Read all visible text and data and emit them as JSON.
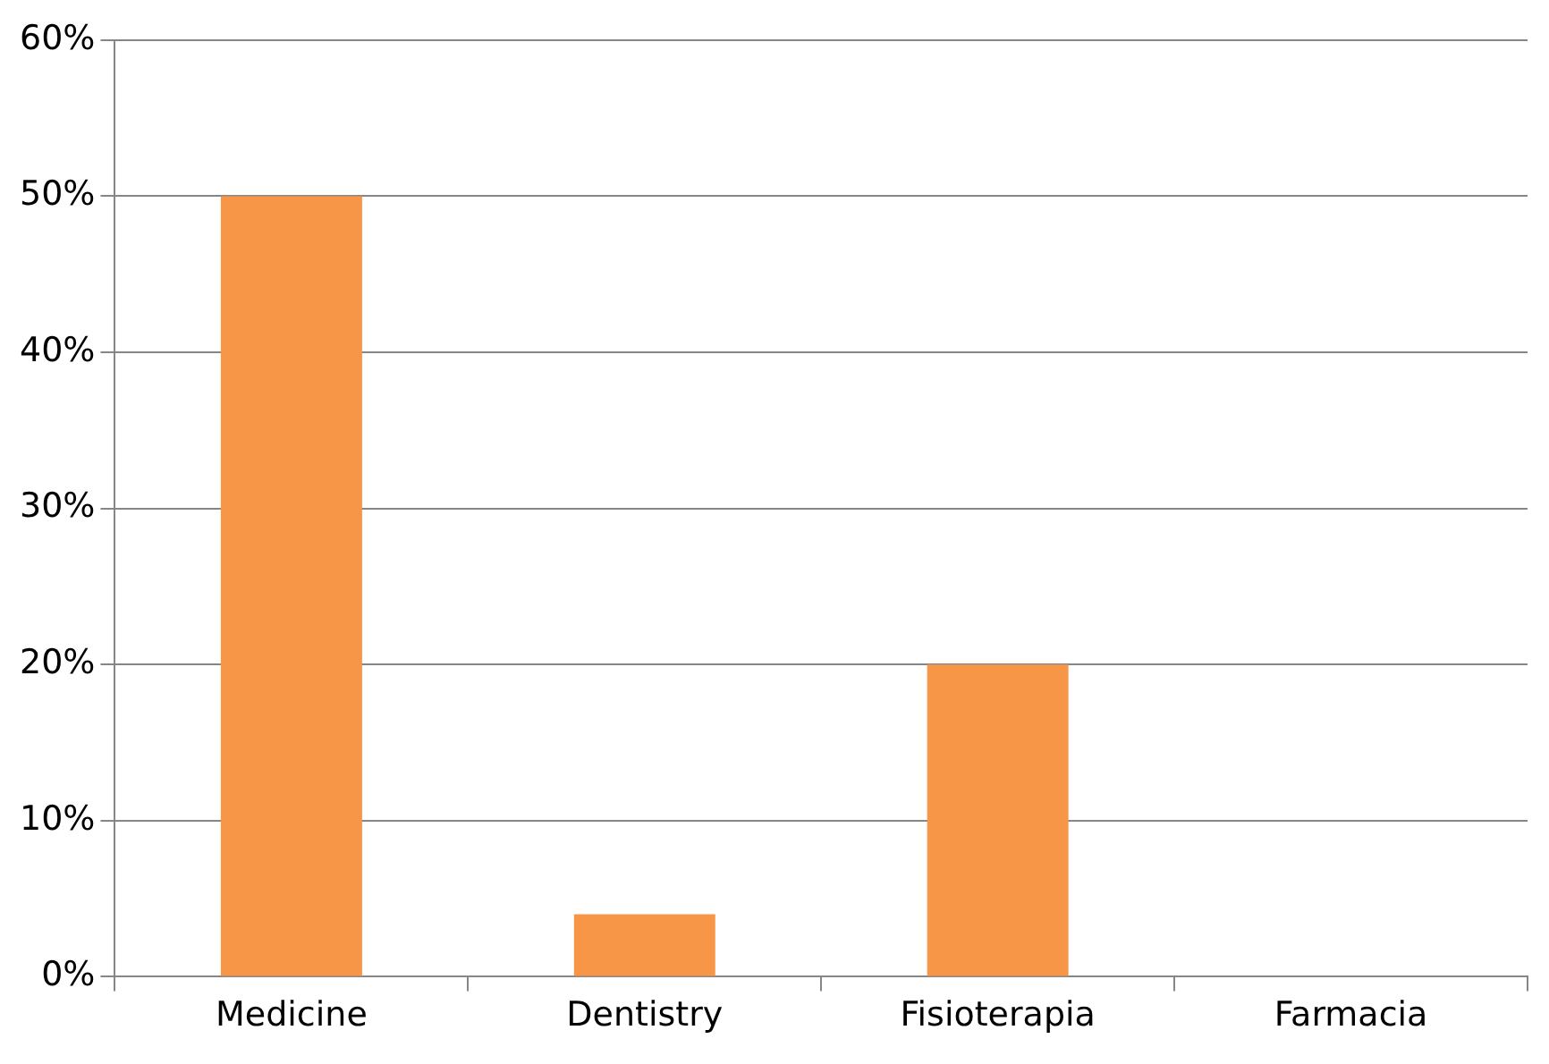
{
  "chart_data": {
    "type": "bar",
    "categories": [
      "Medicine",
      "Dentistry",
      "Fisioterapia",
      "Farmacia"
    ],
    "values": [
      50,
      4,
      20,
      0
    ],
    "color": "#f79646",
    "ylim": [
      0,
      60
    ],
    "yticks": [
      {
        "value": 0,
        "label": "0%"
      },
      {
        "value": 10,
        "label": "10%"
      },
      {
        "value": 20,
        "label": "20%"
      },
      {
        "value": 30,
        "label": "30%"
      },
      {
        "value": 40,
        "label": "40%"
      },
      {
        "value": 50,
        "label": "50%"
      },
      {
        "value": 60,
        "label": "60%"
      }
    ],
    "grid": "y",
    "legend": false
  }
}
